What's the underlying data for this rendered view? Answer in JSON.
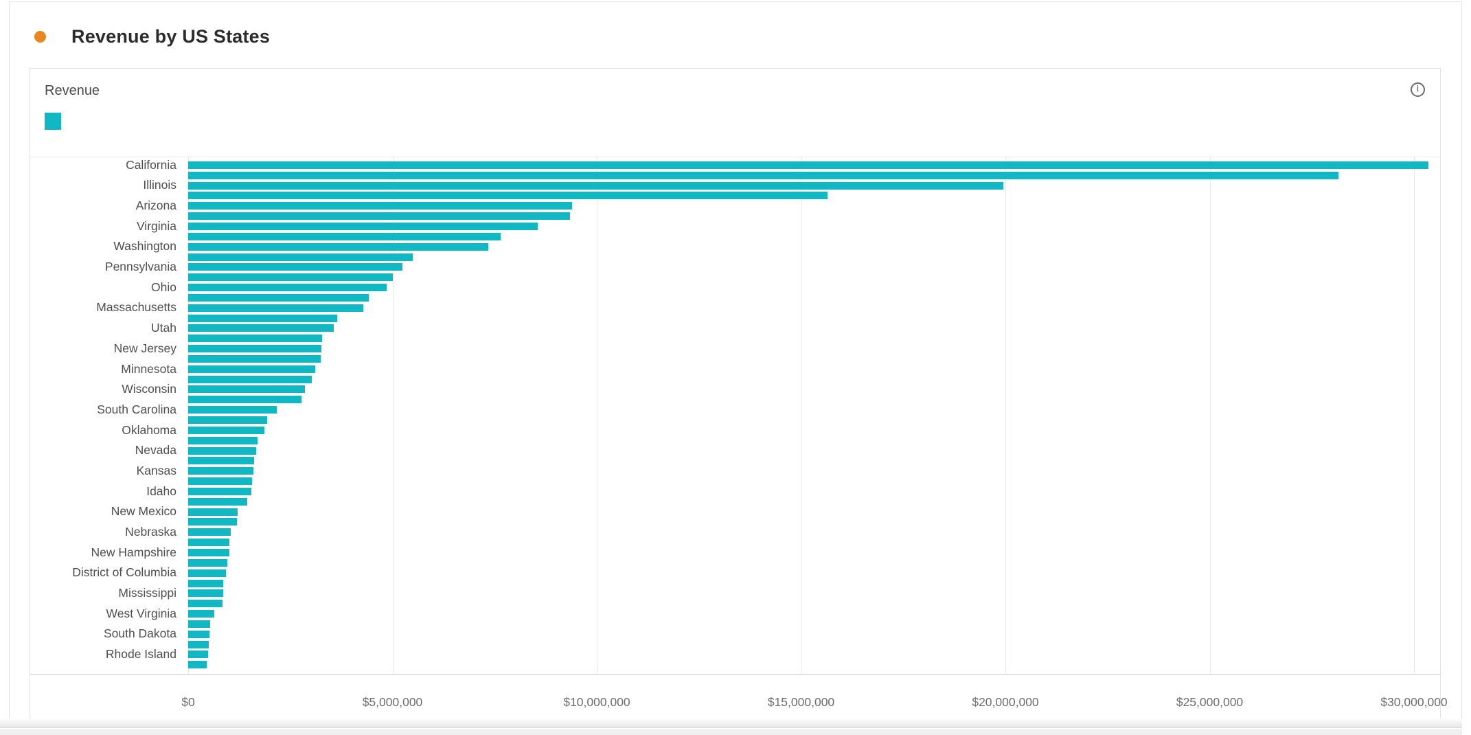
{
  "panel": {
    "title": "Revenue by US States",
    "bullet_color": "#E8871F"
  },
  "card": {
    "legend_label": "Revenue",
    "legend_color": "#0FB8C3",
    "info_icon": "info-circle-icon",
    "info_glyph": "i"
  },
  "chart_data": {
    "type": "bar",
    "orientation": "horizontal",
    "title": "Revenue by US States",
    "series_name": "Revenue",
    "bar_color": "#0FB8C3",
    "grid": true,
    "legend_position": "top-left",
    "y_axis_note": "every second bar is unlabeled on screen",
    "x_axis": {
      "label": "",
      "tick_labels": [
        "$0",
        "$5,000,000",
        "$10,000,000",
        "$15,000,000",
        "$20,000,000",
        "$25,000,000",
        "$30,000,000"
      ],
      "tick_values": [
        0,
        5000000,
        10000000,
        15000000,
        20000000,
        25000000,
        30000000
      ],
      "max_visible": 30600000
    },
    "bars": [
      {
        "label": "California",
        "value": 30350000
      },
      {
        "label": "",
        "value": 28150000
      },
      {
        "label": "Illinois",
        "value": 19950000
      },
      {
        "label": "",
        "value": 15650000
      },
      {
        "label": "Arizona",
        "value": 9400000
      },
      {
        "label": "",
        "value": 9350000
      },
      {
        "label": "Virginia",
        "value": 8550000
      },
      {
        "label": "",
        "value": 7650000
      },
      {
        "label": "Washington",
        "value": 7350000
      },
      {
        "label": "",
        "value": 5500000
      },
      {
        "label": "Pennsylvania",
        "value": 5250000
      },
      {
        "label": "",
        "value": 5000000
      },
      {
        "label": "Ohio",
        "value": 4850000
      },
      {
        "label": "",
        "value": 4420000
      },
      {
        "label": "Massachusetts",
        "value": 4290000
      },
      {
        "label": "",
        "value": 3640000
      },
      {
        "label": "Utah",
        "value": 3560000
      },
      {
        "label": "",
        "value": 3270000
      },
      {
        "label": "New Jersey",
        "value": 3260000
      },
      {
        "label": "",
        "value": 3250000
      },
      {
        "label": "Minnesota",
        "value": 3110000
      },
      {
        "label": "",
        "value": 3030000
      },
      {
        "label": "Wisconsin",
        "value": 2860000
      },
      {
        "label": "",
        "value": 2770000
      },
      {
        "label": "South Carolina",
        "value": 2170000
      },
      {
        "label": "",
        "value": 1930000
      },
      {
        "label": "Oklahoma",
        "value": 1870000
      },
      {
        "label": "",
        "value": 1700000
      },
      {
        "label": "Nevada",
        "value": 1660000
      },
      {
        "label": "",
        "value": 1610000
      },
      {
        "label": "Kansas",
        "value": 1600000
      },
      {
        "label": "",
        "value": 1560000
      },
      {
        "label": "Idaho",
        "value": 1550000
      },
      {
        "label": "",
        "value": 1450000
      },
      {
        "label": "New Mexico",
        "value": 1210000
      },
      {
        "label": "",
        "value": 1190000
      },
      {
        "label": "Nebraska",
        "value": 1040000
      },
      {
        "label": "",
        "value": 1010000
      },
      {
        "label": "New Hampshire",
        "value": 1000000
      },
      {
        "label": "",
        "value": 950000
      },
      {
        "label": "District of Columbia",
        "value": 930000
      },
      {
        "label": "",
        "value": 860000
      },
      {
        "label": "Mississippi",
        "value": 850000
      },
      {
        "label": "",
        "value": 840000
      },
      {
        "label": "West Virginia",
        "value": 640000
      },
      {
        "label": "",
        "value": 530000
      },
      {
        "label": "South Dakota",
        "value": 520000
      },
      {
        "label": "",
        "value": 500000
      },
      {
        "label": "Rhode Island",
        "value": 490000
      },
      {
        "label": "",
        "value": 450000
      }
    ]
  }
}
